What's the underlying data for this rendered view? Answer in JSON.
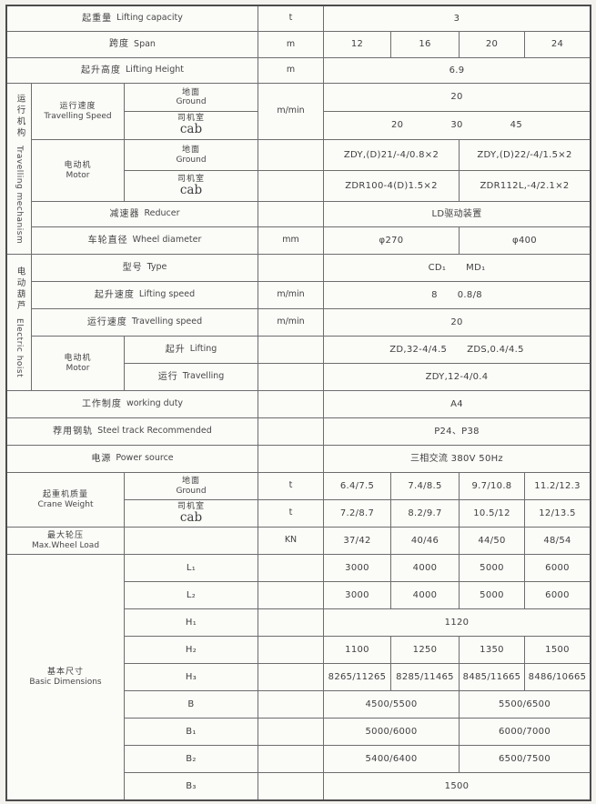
{
  "sections": {
    "travelling_mechanism": {
      "zh": "运行机构",
      "en": "Travelling mechanism"
    },
    "electric_hoist": {
      "zh": "电动葫芦",
      "en": "Electric hoist"
    }
  },
  "rows": {
    "lifting_capacity": {
      "zh": "起重量",
      "en": "Lifting capacity",
      "unit": "t",
      "value": "3"
    },
    "span": {
      "zh": "跨度",
      "en": "Span",
      "unit": "m",
      "values": [
        "12",
        "16",
        "20",
        "24"
      ]
    },
    "lifting_height": {
      "zh": "起升高度",
      "en": "Lifting Height",
      "unit": "m",
      "value": "6.9"
    },
    "travelling_speed": {
      "zh": "运行速度",
      "en": "Travelling Speed",
      "unit": "m/min",
      "ground": {
        "zh": "地面",
        "en": "Ground",
        "value": "20"
      },
      "cab": {
        "zh": "司机室",
        "en": "cab",
        "values": [
          "20",
          "30",
          "45"
        ]
      }
    },
    "motor": {
      "zh": "电动机",
      "en": "Motor",
      "ground": {
        "zh": "地面",
        "en": "Ground",
        "values": [
          "ZDY,(D)21/-4/0.8×2",
          "ZDY,(D)22/-4/1.5×2"
        ]
      },
      "cab": {
        "zh": "司机室",
        "en": "cab",
        "values": [
          "ZDR100-4(D)1.5×2",
          "ZDR112L,-4/2.1×2"
        ]
      }
    },
    "reducer": {
      "zh": "减速器",
      "en": "Reducer",
      "value": "LD驱动装置"
    },
    "wheel_diameter": {
      "zh": "车轮直径",
      "en": "Wheel diameter",
      "unit": "mm",
      "values": [
        "φ270",
        "φ400"
      ]
    },
    "type": {
      "zh": "型号",
      "en": "Type",
      "values": [
        "CD₁",
        "MD₁"
      ]
    },
    "lifting_speed": {
      "zh": "起升速度",
      "en": "Lifting speed",
      "unit": "m/min",
      "values": [
        "8",
        "0.8/8"
      ]
    },
    "hoist_travelling_speed": {
      "zh": "运行速度",
      "en": "Travelling speed",
      "unit": "m/min",
      "value": "20"
    },
    "hoist_motor": {
      "zh": "电动机",
      "en": "Motor",
      "lifting": {
        "zh": "起升",
        "en": "Lifting",
        "values": [
          "ZD,32-4/4.5",
          "ZDS,0.4/4.5"
        ]
      },
      "travelling": {
        "zh": "运行",
        "en": "Travelling",
        "value": "ZDY,12-4/0.4"
      }
    },
    "working_duty": {
      "zh": "工作制度",
      "en": "working duty",
      "value": "A4"
    },
    "steel_track": {
      "zh": "荐用钢轨",
      "en": "Steel track Recommended",
      "value": "P24、P38"
    },
    "power_source": {
      "zh": "电源",
      "en": "Power source",
      "value": "三相交流  380V  50Hz"
    },
    "crane_weight": {
      "zh": "起重机质量",
      "en": "Crane Weight",
      "unit": "t",
      "ground": {
        "zh": "地面",
        "en": "Ground",
        "values": [
          "6.4/7.5",
          "7.4/8.5",
          "9.7/10.8",
          "11.2/12.3"
        ]
      },
      "cab": {
        "zh": "司机室",
        "en": "cab",
        "values": [
          "7.2/8.7",
          "8.2/9.7",
          "10.5/12",
          "12/13.5"
        ]
      }
    },
    "max_wheel_load": {
      "zh": "最大轮压",
      "en": "Max.Wheel Load",
      "unit": "KN",
      "values": [
        "37/42",
        "40/46",
        "44/50",
        "48/54"
      ]
    },
    "basic_dimensions": {
      "zh": "基本尺寸",
      "en": "Basic Dimensions",
      "l1": {
        "label": "L₁",
        "values": [
          "3000",
          "4000",
          "5000",
          "6000"
        ]
      },
      "l2": {
        "label": "L₂",
        "values": [
          "3000",
          "4000",
          "5000",
          "6000"
        ]
      },
      "h1": {
        "label": "H₁",
        "value": "1120"
      },
      "h2": {
        "label": "H₂",
        "values": [
          "1100",
          "1250",
          "1350",
          "1500"
        ]
      },
      "h3": {
        "label": "H₃",
        "values": [
          "8265/11265",
          "8285/11465",
          "8485/11665",
          "8486/10665"
        ]
      },
      "b": {
        "label": "B",
        "values": [
          "4500/5500",
          "5500/6500"
        ]
      },
      "b1": {
        "label": "B₁",
        "values": [
          "5000/6000",
          "6000/7000"
        ]
      },
      "b2": {
        "label": "B₂",
        "values": [
          "5400/6400",
          "6500/7500"
        ]
      },
      "b3": {
        "label": "B₃",
        "value": "1500"
      }
    }
  }
}
